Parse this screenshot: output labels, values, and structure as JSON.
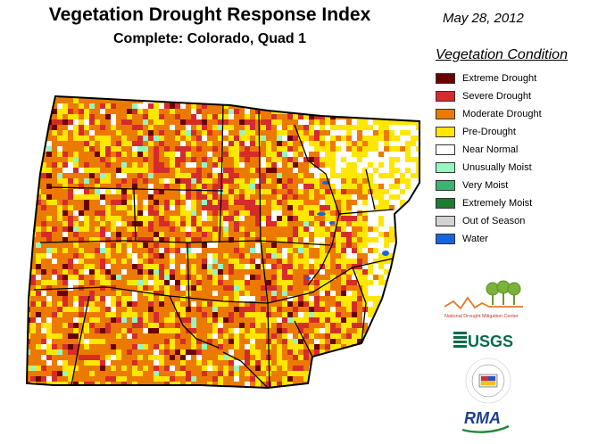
{
  "title": "Vegetation Drought Response Index",
  "subtitle": "Complete: Colorado, Quad 1",
  "date": "May 28, 2012",
  "legend": {
    "title": "Vegetation Condition",
    "items": [
      {
        "label": "Extreme Drought",
        "color": "#6b0000"
      },
      {
        "label": "Severe Drought",
        "color": "#d62b2b"
      },
      {
        "label": "Moderate Drought",
        "color": "#ec7a00"
      },
      {
        "label": "Pre-Drought",
        "color": "#ffe700"
      },
      {
        "label": "Near Normal",
        "color": "#ffffff"
      },
      {
        "label": "Unusually Moist",
        "color": "#98f5c0"
      },
      {
        "label": "Very Moist",
        "color": "#3cb371"
      },
      {
        "label": "Extremely Moist",
        "color": "#1e7b32"
      },
      {
        "label": "Out of Season",
        "color": "#d3d3d3"
      },
      {
        "label": "Water",
        "color": "#1565e0"
      }
    ]
  },
  "logos": {
    "ndmc": "National Drought Mitigation Center",
    "usgs": "USGS",
    "hprcc": "HIGH PLAINS REGIONAL CLIMATE CENTER",
    "rma": "RMA"
  }
}
